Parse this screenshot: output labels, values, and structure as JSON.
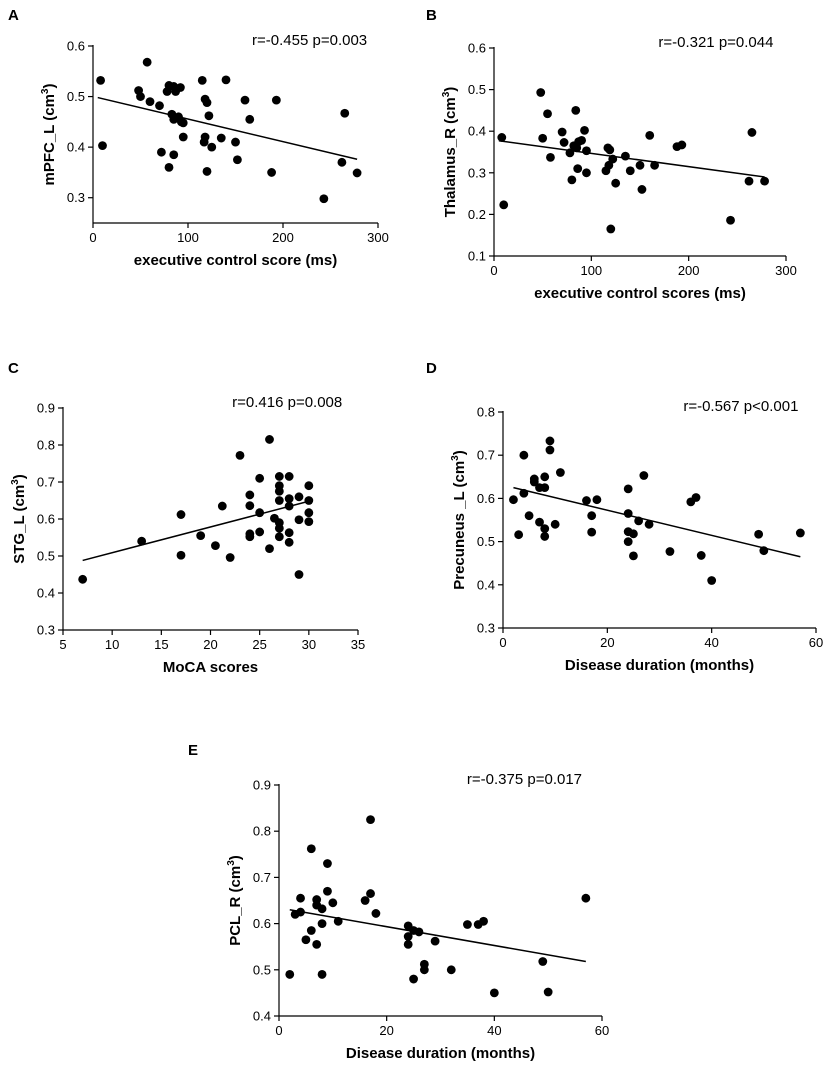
{
  "chart_data": [
    {
      "panel": "A",
      "type": "scatter",
      "title": "",
      "xlabel": "executive control score (ms)",
      "ylabel": "mPFC_L (cm",
      "ylabel_sup": "3",
      "ylabel_close": ")",
      "annotation": "r=-0.455 p=0.003",
      "xlim": [
        0,
        300
      ],
      "ylim": [
        0.25,
        0.6
      ],
      "xticks": [
        0,
        100,
        200,
        300
      ],
      "yticks": [
        0.3,
        0.4,
        0.5,
        0.6
      ],
      "ytick_labels": [
        "0.3",
        "0.4",
        "0.5",
        "0.6"
      ],
      "points": [
        [
          8,
          0.532
        ],
        [
          10,
          0.403
        ],
        [
          48,
          0.512
        ],
        [
          50,
          0.5
        ],
        [
          57,
          0.568
        ],
        [
          60,
          0.49
        ],
        [
          70,
          0.482
        ],
        [
          72,
          0.39
        ],
        [
          78,
          0.51
        ],
        [
          80,
          0.36
        ],
        [
          80,
          0.522
        ],
        [
          83,
          0.465
        ],
        [
          85,
          0.52
        ],
        [
          85,
          0.455
        ],
        [
          85,
          0.385
        ],
        [
          87,
          0.51
        ],
        [
          90,
          0.46
        ],
        [
          92,
          0.518
        ],
        [
          93,
          0.45
        ],
        [
          95,
          0.448
        ],
        [
          95,
          0.42
        ],
        [
          115,
          0.532
        ],
        [
          117,
          0.41
        ],
        [
          118,
          0.42
        ],
        [
          118,
          0.495
        ],
        [
          120,
          0.488
        ],
        [
          120,
          0.352
        ],
        [
          122,
          0.462
        ],
        [
          125,
          0.4
        ],
        [
          135,
          0.418
        ],
        [
          140,
          0.533
        ],
        [
          150,
          0.41
        ],
        [
          152,
          0.375
        ],
        [
          160,
          0.493
        ],
        [
          165,
          0.455
        ],
        [
          188,
          0.35
        ],
        [
          193,
          0.493
        ],
        [
          243,
          0.298
        ],
        [
          262,
          0.37
        ],
        [
          265,
          0.467
        ],
        [
          278,
          0.349
        ]
      ],
      "fit": [
        [
          5,
          0.498
        ],
        [
          278,
          0.376
        ]
      ]
    },
    {
      "panel": "B",
      "type": "scatter",
      "title": "",
      "xlabel": "executive control scores (ms)",
      "ylabel": "Thalamus_R (cm",
      "ylabel_sup": "3",
      "ylabel_close": ")",
      "annotation": "r=-0.321 p=0.044",
      "xlim": [
        0,
        300
      ],
      "ylim": [
        0.1,
        0.6
      ],
      "xticks": [
        0,
        100,
        200,
        300
      ],
      "yticks": [
        0.1,
        0.2,
        0.3,
        0.4,
        0.5,
        0.6
      ],
      "ytick_labels": [
        "0.1",
        "0.2",
        "0.3",
        "0.4",
        "0.5",
        "0.6"
      ],
      "points": [
        [
          8,
          0.385
        ],
        [
          10,
          0.223
        ],
        [
          48,
          0.493
        ],
        [
          50,
          0.383
        ],
        [
          55,
          0.442
        ],
        [
          58,
          0.337
        ],
        [
          70,
          0.398
        ],
        [
          72,
          0.373
        ],
        [
          78,
          0.348
        ],
        [
          80,
          0.283
        ],
        [
          82,
          0.365
        ],
        [
          84,
          0.45
        ],
        [
          85,
          0.36
        ],
        [
          86,
          0.31
        ],
        [
          87,
          0.375
        ],
        [
          90,
          0.378
        ],
        [
          93,
          0.402
        ],
        [
          95,
          0.353
        ],
        [
          95,
          0.3
        ],
        [
          115,
          0.305
        ],
        [
          117,
          0.36
        ],
        [
          118,
          0.318
        ],
        [
          119,
          0.355
        ],
        [
          120,
          0.165
        ],
        [
          122,
          0.333
        ],
        [
          125,
          0.275
        ],
        [
          135,
          0.34
        ],
        [
          140,
          0.305
        ],
        [
          150,
          0.318
        ],
        [
          152,
          0.26
        ],
        [
          160,
          0.39
        ],
        [
          165,
          0.318
        ],
        [
          188,
          0.363
        ],
        [
          193,
          0.367
        ],
        [
          243,
          0.186
        ],
        [
          262,
          0.28
        ],
        [
          265,
          0.397
        ],
        [
          278,
          0.28
        ]
      ],
      "fit": [
        [
          5,
          0.377
        ],
        [
          278,
          0.29
        ]
      ]
    },
    {
      "panel": "C",
      "type": "scatter",
      "title": "",
      "xlabel": "MoCA scores",
      "ylabel": "STG_L (cm",
      "ylabel_sup": "3",
      "ylabel_close": ")",
      "annotation": "r=0.416 p=0.008",
      "xlim": [
        5,
        35
      ],
      "ylim": [
        0.3,
        0.9
      ],
      "xticks": [
        5,
        10,
        15,
        20,
        25,
        30,
        35
      ],
      "yticks": [
        0.3,
        0.4,
        0.5,
        0.6,
        0.7,
        0.8,
        0.9
      ],
      "ytick_labels": [
        "0.3",
        "0.4",
        "0.5",
        "0.6",
        "0.7",
        "0.8",
        "0.9"
      ],
      "points": [
        [
          7,
          0.437
        ],
        [
          13,
          0.54
        ],
        [
          17,
          0.612
        ],
        [
          17,
          0.502
        ],
        [
          19,
          0.555
        ],
        [
          20.5,
          0.528
        ],
        [
          21.2,
          0.635
        ],
        [
          22,
          0.496
        ],
        [
          23,
          0.772
        ],
        [
          24,
          0.665
        ],
        [
          24,
          0.636
        ],
        [
          24,
          0.552
        ],
        [
          24,
          0.56
        ],
        [
          25,
          0.71
        ],
        [
          25,
          0.617
        ],
        [
          25,
          0.565
        ],
        [
          26,
          0.815
        ],
        [
          26,
          0.52
        ],
        [
          26.5,
          0.602
        ],
        [
          27,
          0.715
        ],
        [
          27,
          0.69
        ],
        [
          27,
          0.675
        ],
        [
          27,
          0.65
        ],
        [
          27,
          0.59
        ],
        [
          27,
          0.575
        ],
        [
          27,
          0.552
        ],
        [
          28,
          0.715
        ],
        [
          28,
          0.655
        ],
        [
          28,
          0.635
        ],
        [
          28,
          0.563
        ],
        [
          28,
          0.537
        ],
        [
          29,
          0.66
        ],
        [
          29,
          0.45
        ],
        [
          29,
          0.598
        ],
        [
          30,
          0.69
        ],
        [
          30,
          0.65
        ],
        [
          30,
          0.617
        ],
        [
          30,
          0.593
        ]
      ],
      "fit": [
        [
          7,
          0.488
        ],
        [
          30,
          0.648
        ]
      ]
    },
    {
      "panel": "D",
      "type": "scatter",
      "title": "",
      "xlabel": "Disease duration (months)",
      "ylabel": "Precuneus _L (cm",
      "ylabel_sup": "3",
      "ylabel_close": ")",
      "annotation": "r=-0.567 p<0.001",
      "xlim": [
        0,
        60
      ],
      "ylim": [
        0.3,
        0.8
      ],
      "xticks": [
        0,
        20,
        40,
        60
      ],
      "yticks": [
        0.3,
        0.4,
        0.5,
        0.6,
        0.7,
        0.8
      ],
      "ytick_labels": [
        "0.3",
        "0.4",
        "0.5",
        "0.6",
        "0.7",
        "0.8"
      ],
      "points": [
        [
          2,
          0.597
        ],
        [
          3,
          0.516
        ],
        [
          4,
          0.7
        ],
        [
          4,
          0.612
        ],
        [
          5,
          0.56
        ],
        [
          6,
          0.645
        ],
        [
          6,
          0.638
        ],
        [
          7,
          0.625
        ],
        [
          7,
          0.545
        ],
        [
          8,
          0.625
        ],
        [
          8,
          0.65
        ],
        [
          8,
          0.53
        ],
        [
          8,
          0.512
        ],
        [
          9,
          0.733
        ],
        [
          9,
          0.712
        ],
        [
          10,
          0.54
        ],
        [
          11,
          0.66
        ],
        [
          16,
          0.595
        ],
        [
          17,
          0.522
        ],
        [
          17,
          0.56
        ],
        [
          18,
          0.597
        ],
        [
          24,
          0.622
        ],
        [
          24,
          0.565
        ],
        [
          24,
          0.523
        ],
        [
          24,
          0.5
        ],
        [
          25,
          0.518
        ],
        [
          25,
          0.467
        ],
        [
          26,
          0.548
        ],
        [
          27,
          0.653
        ],
        [
          28,
          0.54
        ],
        [
          32,
          0.477
        ],
        [
          36,
          0.592
        ],
        [
          37,
          0.602
        ],
        [
          38,
          0.468
        ],
        [
          40,
          0.41
        ],
        [
          49,
          0.517
        ],
        [
          50,
          0.479
        ],
        [
          57,
          0.52
        ]
      ],
      "fit": [
        [
          2,
          0.625
        ],
        [
          57,
          0.465
        ]
      ]
    },
    {
      "panel": "E",
      "type": "scatter",
      "title": "",
      "xlabel": "Disease duration (months)",
      "ylabel": "PCL_R (cm",
      "ylabel_sup": "3",
      "ylabel_close": ")",
      "annotation": "r=-0.375 p=0.017",
      "xlim": [
        0,
        60
      ],
      "ylim": [
        0.4,
        0.9
      ],
      "xticks": [
        0,
        20,
        40,
        60
      ],
      "yticks": [
        0.4,
        0.5,
        0.6,
        0.7,
        0.8,
        0.9
      ],
      "ytick_labels": [
        "0.4",
        "0.5",
        "0.6",
        "0.7",
        "0.8",
        "0.9"
      ],
      "points": [
        [
          2,
          0.49
        ],
        [
          3,
          0.62
        ],
        [
          4,
          0.655
        ],
        [
          4,
          0.625
        ],
        [
          5,
          0.565
        ],
        [
          6,
          0.762
        ],
        [
          6,
          0.585
        ],
        [
          7,
          0.652
        ],
        [
          7,
          0.64
        ],
        [
          7,
          0.555
        ],
        [
          8,
          0.632
        ],
        [
          8,
          0.6
        ],
        [
          8,
          0.49
        ],
        [
          9,
          0.73
        ],
        [
          9,
          0.67
        ],
        [
          10,
          0.645
        ],
        [
          11,
          0.605
        ],
        [
          16,
          0.65
        ],
        [
          17,
          0.825
        ],
        [
          17,
          0.665
        ],
        [
          18,
          0.622
        ],
        [
          24,
          0.595
        ],
        [
          24,
          0.572
        ],
        [
          24,
          0.555
        ],
        [
          25,
          0.585
        ],
        [
          25,
          0.48
        ],
        [
          26,
          0.582
        ],
        [
          27,
          0.512
        ],
        [
          27,
          0.5
        ],
        [
          29,
          0.562
        ],
        [
          32,
          0.5
        ],
        [
          35,
          0.598
        ],
        [
          37,
          0.598
        ],
        [
          38,
          0.605
        ],
        [
          40,
          0.45
        ],
        [
          49,
          0.518
        ],
        [
          50,
          0.452
        ],
        [
          57,
          0.655
        ]
      ],
      "fit": [
        [
          2,
          0.63
        ],
        [
          57,
          0.518
        ]
      ]
    }
  ]
}
